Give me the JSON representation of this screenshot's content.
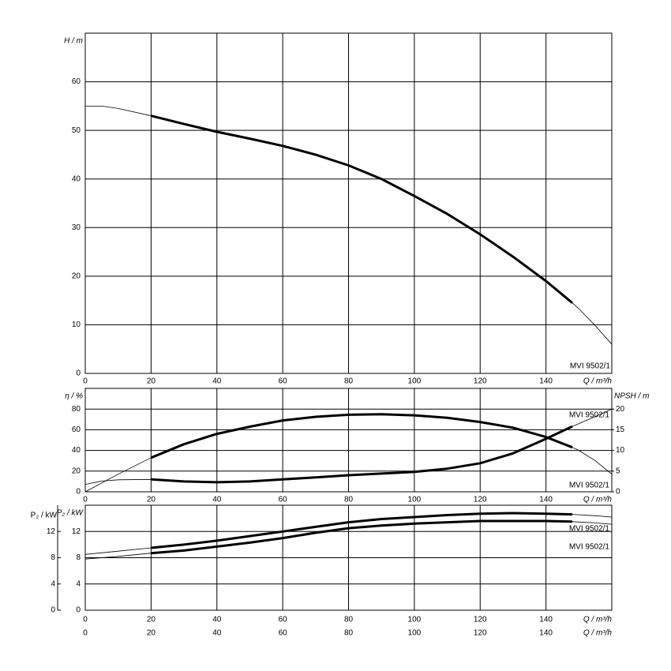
{
  "chart_data": [
    {
      "type": "line",
      "y_label": "H / m",
      "x_label": "Q / m³/h",
      "labels": [
        "MVI 9502/1"
      ],
      "xlim": [
        0,
        160
      ],
      "xticks": [
        0,
        20,
        40,
        60,
        80,
        100,
        120,
        140
      ],
      "ylim": [
        0,
        70
      ],
      "yticks": [
        0,
        10,
        20,
        30,
        40,
        50,
        60
      ],
      "grid": true,
      "series": [
        {
          "style": "thin",
          "color": "#000000",
          "x": [
            0,
            5,
            10,
            20,
            30,
            40,
            50,
            60,
            70,
            80,
            90,
            100,
            110,
            120,
            130,
            140,
            148,
            150,
            155,
            160
          ],
          "values": [
            55,
            55,
            54.5,
            53,
            51.3,
            49.7,
            48.3,
            46.8,
            45,
            42.8,
            40,
            36.5,
            32.8,
            28.6,
            24,
            19,
            14.5,
            13.3,
            9.8,
            6
          ]
        },
        {
          "style": "thick",
          "color": "#000000",
          "x": [
            20,
            30,
            40,
            50,
            60,
            70,
            80,
            90,
            100,
            110,
            120,
            130,
            140,
            148
          ],
          "values": [
            53,
            51.3,
            49.7,
            48.3,
            46.8,
            45,
            42.8,
            40,
            36.5,
            32.8,
            28.6,
            24,
            19,
            14.5
          ]
        }
      ]
    },
    {
      "type": "line",
      "y_label": "η / %",
      "y2_label": "NPSH / m",
      "x_label": "Q / m³/h",
      "labels": [
        "MVI 9502/1",
        "MVI 9502/1"
      ],
      "xlim": [
        0,
        160
      ],
      "xticks": [
        0,
        20,
        40,
        60,
        80,
        100,
        120,
        140
      ],
      "ylim": [
        0,
        100
      ],
      "yticks": [
        0,
        20,
        40,
        60,
        80
      ],
      "y2lim": [
        0,
        25
      ],
      "y2ticks": [
        0,
        5,
        10,
        15,
        20
      ],
      "grid": true,
      "series": [
        {
          "style": "thin",
          "color": "#000000",
          "x": [
            0,
            10,
            20,
            30,
            40,
            50,
            60,
            70,
            80,
            90,
            100,
            110,
            120,
            130,
            140,
            148,
            150,
            155,
            160
          ],
          "values": [
            0,
            17,
            33,
            46,
            56,
            63,
            69,
            72.5,
            74.5,
            75,
            74,
            71.5,
            67.5,
            62,
            53,
            43,
            40,
            30,
            17
          ]
        },
        {
          "style": "thick",
          "color": "#000000",
          "x": [
            20,
            30,
            40,
            50,
            60,
            70,
            80,
            90,
            100,
            110,
            120,
            130,
            140,
            148
          ],
          "values": [
            33,
            46,
            56,
            63,
            69,
            72.5,
            74.5,
            75,
            74,
            71.5,
            67.5,
            62,
            53,
            43
          ]
        },
        {
          "style": "thin",
          "color": "#000000",
          "axis": "y2",
          "x": [
            0,
            5,
            10,
            20,
            30,
            40,
            50,
            60,
            70,
            80,
            90,
            100,
            110,
            120,
            130,
            140,
            148,
            155,
            160
          ],
          "values": [
            1.8,
            2.6,
            2.9,
            3,
            2.5,
            2.3,
            2.5,
            3,
            3.5,
            4,
            4.4,
            4.8,
            5.6,
            6.9,
            9.3,
            12.8,
            15.8,
            18.2,
            20
          ]
        },
        {
          "style": "thick",
          "color": "#000000",
          "axis": "y2",
          "x": [
            20,
            30,
            40,
            50,
            60,
            70,
            80,
            90,
            100,
            110,
            120,
            130,
            140,
            148
          ],
          "values": [
            3,
            2.5,
            2.3,
            2.5,
            3,
            3.5,
            4,
            4.4,
            4.8,
            5.6,
            6.9,
            9.3,
            12.8,
            15.8
          ]
        }
      ]
    },
    {
      "type": "line",
      "y_label": "P₂ / kW",
      "x_label": "Q / m³/h",
      "labels": [
        "MVI 9502/1",
        "MVI 9502/1"
      ],
      "xlim": [
        0,
        160
      ],
      "xticks": [
        0,
        20,
        40,
        60,
        80,
        100,
        120,
        140
      ],
      "ylim": [
        0,
        16
      ],
      "yticks": [
        0,
        4,
        8,
        12
      ],
      "grid": true,
      "series": [
        {
          "style": "thin",
          "color": "#000000",
          "x": [
            0,
            10,
            20,
            40,
            60,
            80,
            100,
            120,
            140,
            148,
            155,
            160
          ],
          "values": [
            8.5,
            9,
            9.5,
            10.6,
            12,
            13.4,
            14.2,
            14.7,
            14.7,
            14.6,
            14.4,
            14.2
          ]
        },
        {
          "style": "thick",
          "color": "#000000",
          "x": [
            20,
            30,
            40,
            50,
            60,
            70,
            80,
            90,
            100,
            110,
            120,
            130,
            140,
            148
          ],
          "values": [
            9.5,
            10,
            10.6,
            11.3,
            12,
            12.7,
            13.4,
            13.9,
            14.2,
            14.5,
            14.7,
            14.8,
            14.7,
            14.6
          ]
        },
        {
          "style": "thin",
          "color": "#000000",
          "x": [
            0,
            10,
            20,
            40,
            60,
            80,
            100,
            120,
            140,
            148,
            155,
            160
          ],
          "values": [
            7.8,
            8.2,
            8.7,
            9.7,
            11,
            12.5,
            13.2,
            13.6,
            13.6,
            13.5,
            13.3,
            13.1
          ]
        },
        {
          "style": "thick",
          "color": "#000000",
          "x": [
            20,
            30,
            40,
            50,
            60,
            70,
            80,
            90,
            100,
            110,
            120,
            130,
            140,
            148
          ],
          "values": [
            8.7,
            9.1,
            9.7,
            10.3,
            11,
            11.8,
            12.5,
            12.9,
            13.2,
            13.4,
            13.6,
            13.6,
            13.6,
            13.5
          ]
        }
      ]
    }
  ]
}
